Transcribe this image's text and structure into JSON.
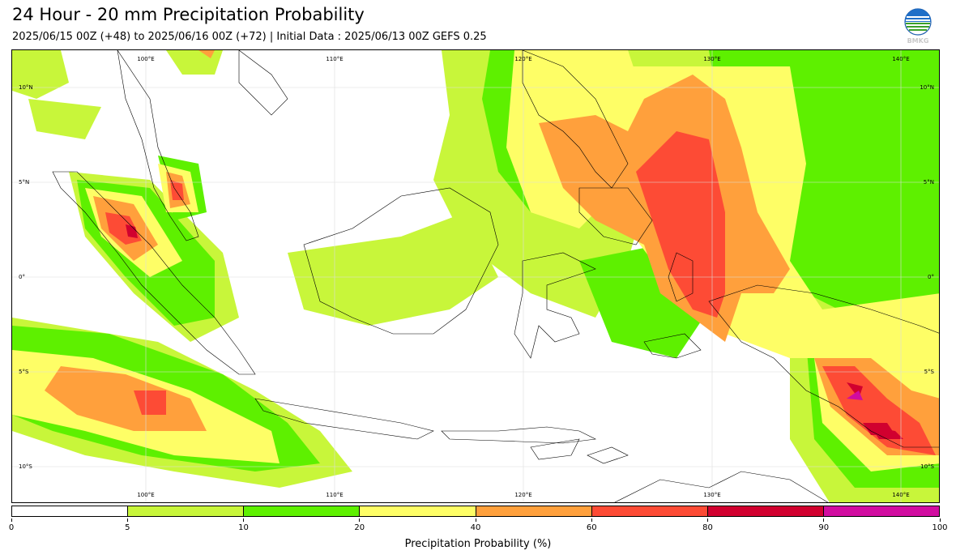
{
  "header": {
    "title": "24 Hour - 20 mm Precipitation Probability",
    "subtitle": "2025/06/15 00Z (+48) to 2025/06/16 00Z (+72) | Initial Data : 2025/06/13 00Z GEFS 0.25",
    "logo_text": "BMKG"
  },
  "map": {
    "lon_labels": [
      "100°E",
      "110°E",
      "120°E",
      "130°E",
      "140°E"
    ],
    "lat_labels": [
      "10°N",
      "5°N",
      "0°",
      "5°S",
      "10°S"
    ]
  },
  "colorbar": {
    "title": "Precipitation Probability (%)",
    "ticks": [
      "0",
      "5",
      "10",
      "20",
      "40",
      "60",
      "80",
      "90",
      "100"
    ],
    "colors": [
      "#ffffff",
      "#c8f63a",
      "#5ef000",
      "#fefe66",
      "#ffa03c",
      "#fd4b35",
      "#d1002f",
      "#d10ca0"
    ]
  }
}
